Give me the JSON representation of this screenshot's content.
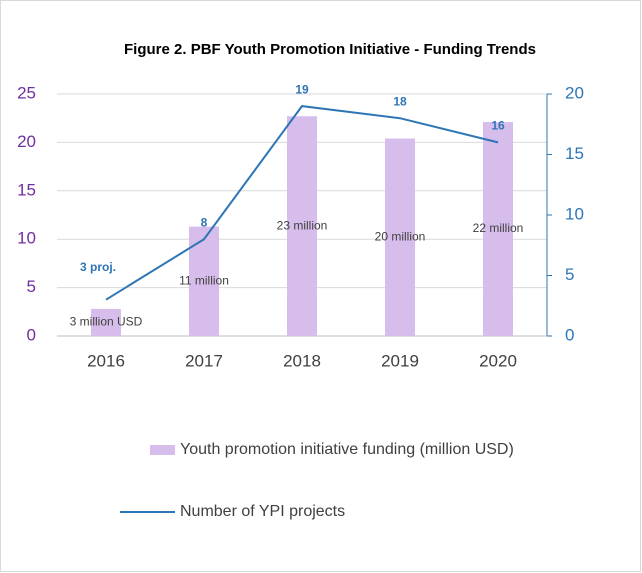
{
  "chart_data": {
    "type": "bar-line",
    "title": "Figure 2. PBF Youth Promotion Initiative - Funding Trends",
    "categories": [
      "2016",
      "2017",
      "2018",
      "2019",
      "2020"
    ],
    "series": [
      {
        "name": "Youth promotion initiative funding (million USD)",
        "type": "bar",
        "color": "#d7bdeb",
        "values": [
          2.8,
          11.3,
          22.7,
          20.4,
          22.1
        ],
        "value_labels": [
          "3 million USD",
          "11 million",
          "23 million",
          "20 million",
          "22 million"
        ]
      },
      {
        "name": "Number of YPI projects",
        "type": "line",
        "axis": "y2",
        "color": "#2e75b6",
        "values": [
          3,
          8,
          19,
          18,
          16
        ],
        "value_labels": [
          "3 proj.",
          "8",
          "19",
          "18",
          "16"
        ]
      }
    ],
    "ylim": [
      0,
      25
    ],
    "yticks": [
      0,
      5,
      10,
      15,
      20,
      25
    ],
    "y2lim": [
      0,
      20
    ],
    "y2ticks": [
      0,
      5,
      10,
      15,
      20
    ],
    "grid": true,
    "legend": "bottom"
  }
}
